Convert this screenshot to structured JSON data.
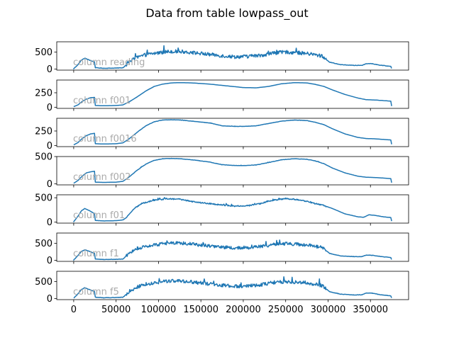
{
  "title": "Data from table lowpass_out",
  "chart_data": {
    "type": "line",
    "title": "Data from table lowpass_out",
    "xlim": [
      -20000,
      395000
    ],
    "x_ticks": [
      0,
      50000,
      100000,
      150000,
      200000,
      250000,
      300000,
      350000
    ],
    "x_tick_labels": [
      "0",
      "50000",
      "100000",
      "150000",
      "200000",
      "250000",
      "300000",
      "350000"
    ],
    "line_color": "#1f77b4",
    "grid": false,
    "panels": [
      {
        "label": "column reading",
        "noise": 95,
        "ylim": [
          -30,
          800
        ],
        "y_ticks": [
          0,
          500
        ],
        "y_tick_labels": [
          "0",
          "500"
        ],
        "series": [
          [
            0,
            10
          ],
          [
            5000,
            130
          ],
          [
            9000,
            260
          ],
          [
            13000,
            320
          ],
          [
            18000,
            270
          ],
          [
            23000,
            220
          ],
          [
            24500,
            210
          ],
          [
            25500,
            40
          ],
          [
            35000,
            25
          ],
          [
            50000,
            30
          ],
          [
            58000,
            40
          ],
          [
            60000,
            80
          ],
          [
            66000,
            230
          ],
          [
            75000,
            340
          ],
          [
            85000,
            420
          ],
          [
            100000,
            480
          ],
          [
            115000,
            520
          ],
          [
            130000,
            510
          ],
          [
            145000,
            470
          ],
          [
            160000,
            430
          ],
          [
            175000,
            390
          ],
          [
            190000,
            360
          ],
          [
            205000,
            370
          ],
          [
            220000,
            400
          ],
          [
            235000,
            470
          ],
          [
            250000,
            500
          ],
          [
            265000,
            480
          ],
          [
            280000,
            440
          ],
          [
            293000,
            380
          ],
          [
            297000,
            300
          ],
          [
            302000,
            200
          ],
          [
            315000,
            130
          ],
          [
            330000,
            110
          ],
          [
            340000,
            110
          ],
          [
            345000,
            160
          ],
          [
            352000,
            160
          ],
          [
            360000,
            120
          ],
          [
            370000,
            90
          ],
          [
            374000,
            80
          ],
          [
            375000,
            20
          ]
        ]
      },
      {
        "label": "column f001",
        "noise": 0,
        "ylim": [
          -20,
          470
        ],
        "y_ticks": [
          0,
          250
        ],
        "y_tick_labels": [
          "0",
          "250"
        ],
        "series": [
          [
            0,
            10
          ],
          [
            5000,
            40
          ],
          [
            10000,
            100
          ],
          [
            15000,
            140
          ],
          [
            20000,
            165
          ],
          [
            24500,
            170
          ],
          [
            25500,
            30
          ],
          [
            35000,
            25
          ],
          [
            50000,
            30
          ],
          [
            58000,
            40
          ],
          [
            65000,
            90
          ],
          [
            75000,
            180
          ],
          [
            85000,
            280
          ],
          [
            95000,
            360
          ],
          [
            105000,
            400
          ],
          [
            115000,
            420
          ],
          [
            125000,
            425
          ],
          [
            140000,
            420
          ],
          [
            160000,
            400
          ],
          [
            180000,
            370
          ],
          [
            200000,
            340
          ],
          [
            215000,
            335
          ],
          [
            230000,
            360
          ],
          [
            245000,
            405
          ],
          [
            260000,
            425
          ],
          [
            275000,
            420
          ],
          [
            285000,
            395
          ],
          [
            295000,
            360
          ],
          [
            305000,
            300
          ],
          [
            320000,
            220
          ],
          [
            335000,
            160
          ],
          [
            345000,
            130
          ],
          [
            355000,
            125
          ],
          [
            365000,
            115
          ],
          [
            374000,
            105
          ],
          [
            375000,
            20
          ]
        ]
      },
      {
        "label": "column f0016",
        "noise": 4,
        "ylim": [
          -20,
          470
        ],
        "y_ticks": [
          0,
          250
        ],
        "y_tick_labels": [
          "0",
          "250"
        ],
        "series": [
          [
            0,
            10
          ],
          [
            5000,
            50
          ],
          [
            10000,
            120
          ],
          [
            15000,
            170
          ],
          [
            20000,
            200
          ],
          [
            24500,
            210
          ],
          [
            25500,
            30
          ],
          [
            35000,
            25
          ],
          [
            50000,
            30
          ],
          [
            58000,
            45
          ],
          [
            65000,
            110
          ],
          [
            75000,
            230
          ],
          [
            85000,
            340
          ],
          [
            95000,
            410
          ],
          [
            105000,
            440
          ],
          [
            115000,
            445
          ],
          [
            125000,
            440
          ],
          [
            140000,
            420
          ],
          [
            160000,
            390
          ],
          [
            175000,
            340
          ],
          [
            190000,
            330
          ],
          [
            200000,
            330
          ],
          [
            215000,
            340
          ],
          [
            230000,
            380
          ],
          [
            245000,
            420
          ],
          [
            260000,
            440
          ],
          [
            275000,
            430
          ],
          [
            285000,
            400
          ],
          [
            295000,
            360
          ],
          [
            305000,
            290
          ],
          [
            320000,
            200
          ],
          [
            335000,
            140
          ],
          [
            345000,
            120
          ],
          [
            355000,
            115
          ],
          [
            365000,
            105
          ],
          [
            374000,
            95
          ],
          [
            375000,
            20
          ]
        ]
      },
      {
        "label": "column f002",
        "noise": 5,
        "ylim": [
          -20,
          500
        ],
        "y_ticks": [
          0,
          500
        ],
        "y_tick_labels": [
          "0",
          "500"
        ],
        "series": [
          [
            0,
            10
          ],
          [
            5000,
            60
          ],
          [
            10000,
            140
          ],
          [
            15000,
            200
          ],
          [
            20000,
            220
          ],
          [
            24500,
            230
          ],
          [
            25500,
            30
          ],
          [
            35000,
            25
          ],
          [
            50000,
            30
          ],
          [
            58000,
            45
          ],
          [
            65000,
            120
          ],
          [
            75000,
            250
          ],
          [
            85000,
            360
          ],
          [
            95000,
            430
          ],
          [
            105000,
            460
          ],
          [
            115000,
            465
          ],
          [
            125000,
            460
          ],
          [
            140000,
            440
          ],
          [
            160000,
            400
          ],
          [
            175000,
            350
          ],
          [
            190000,
            335
          ],
          [
            200000,
            335
          ],
          [
            215000,
            345
          ],
          [
            230000,
            390
          ],
          [
            245000,
            440
          ],
          [
            260000,
            460
          ],
          [
            275000,
            450
          ],
          [
            285000,
            420
          ],
          [
            295000,
            370
          ],
          [
            305000,
            290
          ],
          [
            320000,
            200
          ],
          [
            335000,
            140
          ],
          [
            345000,
            120
          ],
          [
            355000,
            115
          ],
          [
            365000,
            105
          ],
          [
            374000,
            95
          ],
          [
            375000,
            20
          ]
        ]
      },
      {
        "label": "column f01",
        "noise": 22,
        "ylim": [
          -20,
          560
        ],
        "y_ticks": [
          0,
          500
        ],
        "y_tick_labels": [
          "0",
          "500"
        ],
        "series": [
          [
            0,
            10
          ],
          [
            5000,
            120
          ],
          [
            9000,
            230
          ],
          [
            13000,
            280
          ],
          [
            18000,
            240
          ],
          [
            23000,
            190
          ],
          [
            24500,
            180
          ],
          [
            25500,
            35
          ],
          [
            35000,
            25
          ],
          [
            50000,
            30
          ],
          [
            58000,
            45
          ],
          [
            62000,
            90
          ],
          [
            70000,
            260
          ],
          [
            80000,
            380
          ],
          [
            95000,
            450
          ],
          [
            110000,
            480
          ],
          [
            125000,
            470
          ],
          [
            140000,
            420
          ],
          [
            160000,
            380
          ],
          [
            175000,
            350
          ],
          [
            190000,
            330
          ],
          [
            205000,
            335
          ],
          [
            220000,
            380
          ],
          [
            235000,
            450
          ],
          [
            250000,
            480
          ],
          [
            265000,
            460
          ],
          [
            280000,
            400
          ],
          [
            295000,
            340
          ],
          [
            305000,
            280
          ],
          [
            320000,
            170
          ],
          [
            335000,
            110
          ],
          [
            342000,
            100
          ],
          [
            348000,
            150
          ],
          [
            355000,
            140
          ],
          [
            365000,
            110
          ],
          [
            374000,
            95
          ],
          [
            375000,
            20
          ]
        ]
      },
      {
        "label": "column f1",
        "noise": 85,
        "ylim": [
          -30,
          800
        ],
        "y_ticks": [
          0,
          500
        ],
        "y_tick_labels": [
          "0",
          "500"
        ],
        "series": [
          [
            0,
            10
          ],
          [
            5000,
            140
          ],
          [
            9000,
            260
          ],
          [
            13000,
            310
          ],
          [
            18000,
            270
          ],
          [
            23000,
            220
          ],
          [
            24500,
            210
          ],
          [
            25500,
            40
          ],
          [
            35000,
            25
          ],
          [
            50000,
            30
          ],
          [
            58000,
            40
          ],
          [
            60000,
            80
          ],
          [
            66000,
            230
          ],
          [
            75000,
            330
          ],
          [
            85000,
            410
          ],
          [
            100000,
            470
          ],
          [
            115000,
            510
          ],
          [
            130000,
            500
          ],
          [
            145000,
            460
          ],
          [
            160000,
            420
          ],
          [
            175000,
            390
          ],
          [
            190000,
            360
          ],
          [
            205000,
            370
          ],
          [
            220000,
            400
          ],
          [
            235000,
            460
          ],
          [
            250000,
            490
          ],
          [
            265000,
            470
          ],
          [
            280000,
            430
          ],
          [
            293000,
            380
          ],
          [
            297000,
            300
          ],
          [
            302000,
            200
          ],
          [
            315000,
            130
          ],
          [
            330000,
            110
          ],
          [
            340000,
            110
          ],
          [
            345000,
            150
          ],
          [
            352000,
            150
          ],
          [
            360000,
            120
          ],
          [
            370000,
            90
          ],
          [
            374000,
            80
          ],
          [
            375000,
            20
          ]
        ]
      },
      {
        "label": "column f5",
        "noise": 92,
        "ylim": [
          -30,
          800
        ],
        "y_ticks": [
          0,
          500
        ],
        "y_tick_labels": [
          "0",
          "500"
        ],
        "series": [
          [
            0,
            10
          ],
          [
            5000,
            140
          ],
          [
            9000,
            260
          ],
          [
            13000,
            320
          ],
          [
            18000,
            270
          ],
          [
            23000,
            220
          ],
          [
            24500,
            210
          ],
          [
            25500,
            40
          ],
          [
            35000,
            25
          ],
          [
            50000,
            30
          ],
          [
            58000,
            40
          ],
          [
            60000,
            80
          ],
          [
            66000,
            230
          ],
          [
            75000,
            340
          ],
          [
            85000,
            420
          ],
          [
            100000,
            480
          ],
          [
            115000,
            520
          ],
          [
            130000,
            510
          ],
          [
            145000,
            470
          ],
          [
            160000,
            430
          ],
          [
            175000,
            390
          ],
          [
            190000,
            360
          ],
          [
            205000,
            370
          ],
          [
            220000,
            400
          ],
          [
            235000,
            470
          ],
          [
            250000,
            500
          ],
          [
            265000,
            480
          ],
          [
            280000,
            440
          ],
          [
            293000,
            380
          ],
          [
            297000,
            300
          ],
          [
            302000,
            200
          ],
          [
            315000,
            130
          ],
          [
            330000,
            110
          ],
          [
            340000,
            110
          ],
          [
            345000,
            160
          ],
          [
            352000,
            160
          ],
          [
            360000,
            120
          ],
          [
            370000,
            90
          ],
          [
            374000,
            80
          ],
          [
            375000,
            20
          ]
        ]
      }
    ]
  }
}
